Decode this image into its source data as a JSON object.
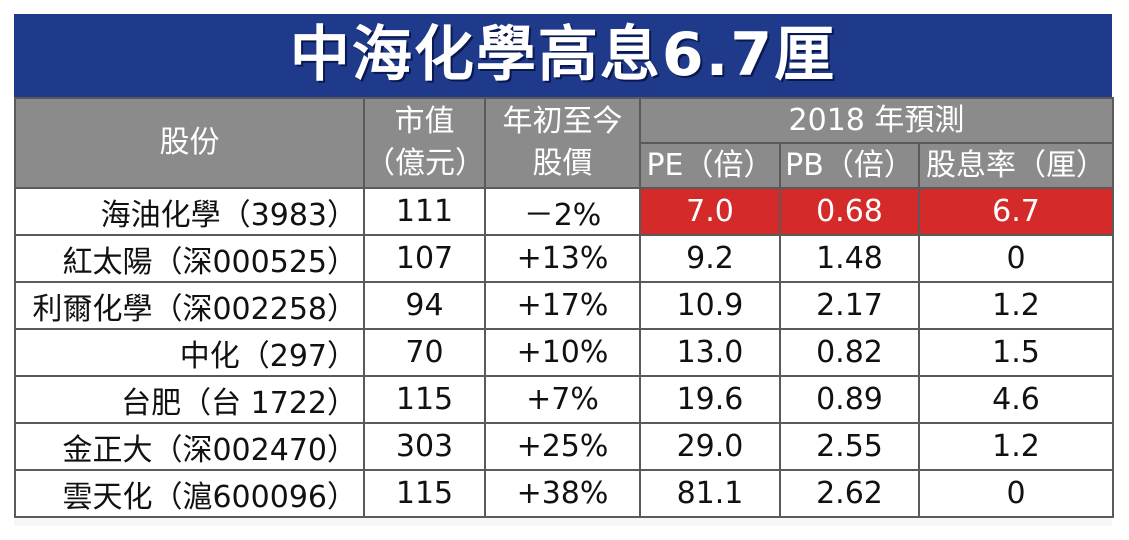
{
  "title": "中海化學高息6.7厘",
  "header": {
    "stock": "股份",
    "mktcap_line1": "市值",
    "mktcap_line2": "（億元）",
    "ytd_line1": "年初至今",
    "ytd_line2": "股價",
    "forecast_group": "2018 年預測",
    "pe": "PE（倍）",
    "pb": "PB（倍）",
    "yield": "股息率（厘）"
  },
  "colors": {
    "title_bg": "#1f3a8a",
    "header_bg": "#8b8b8b",
    "highlight": "#d42a2a"
  },
  "rows": [
    {
      "name": "海油化學（3983）",
      "mktcap": "111",
      "ytd": "－2%",
      "pe": "7.0",
      "pb": "0.68",
      "yield": "6.7",
      "highlight": true
    },
    {
      "name": "紅太陽（深000525）",
      "mktcap": "107",
      "ytd": "+13%",
      "pe": "9.2",
      "pb": "1.48",
      "yield": "0"
    },
    {
      "name": "利爾化學（深002258）",
      "mktcap": "94",
      "ytd": "+17%",
      "pe": "10.9",
      "pb": "2.17",
      "yield": "1.2"
    },
    {
      "name": "中化（297）",
      "mktcap": "70",
      "ytd": "+10%",
      "pe": "13.0",
      "pb": "0.82",
      "yield": "1.5"
    },
    {
      "name": "台肥（台 1722）",
      "mktcap": "115",
      "ytd": "+7%",
      "pe": "19.6",
      "pb": "0.89",
      "yield": "4.6"
    },
    {
      "name": "金正大（深002470）",
      "mktcap": "303",
      "ytd": "+25%",
      "pe": "29.0",
      "pb": "2.55",
      "yield": "1.2"
    },
    {
      "name": "雲天化（滬600096）",
      "mktcap": "115",
      "ytd": "+38%",
      "pe": "81.1",
      "pb": "2.62",
      "yield": "0"
    }
  ]
}
